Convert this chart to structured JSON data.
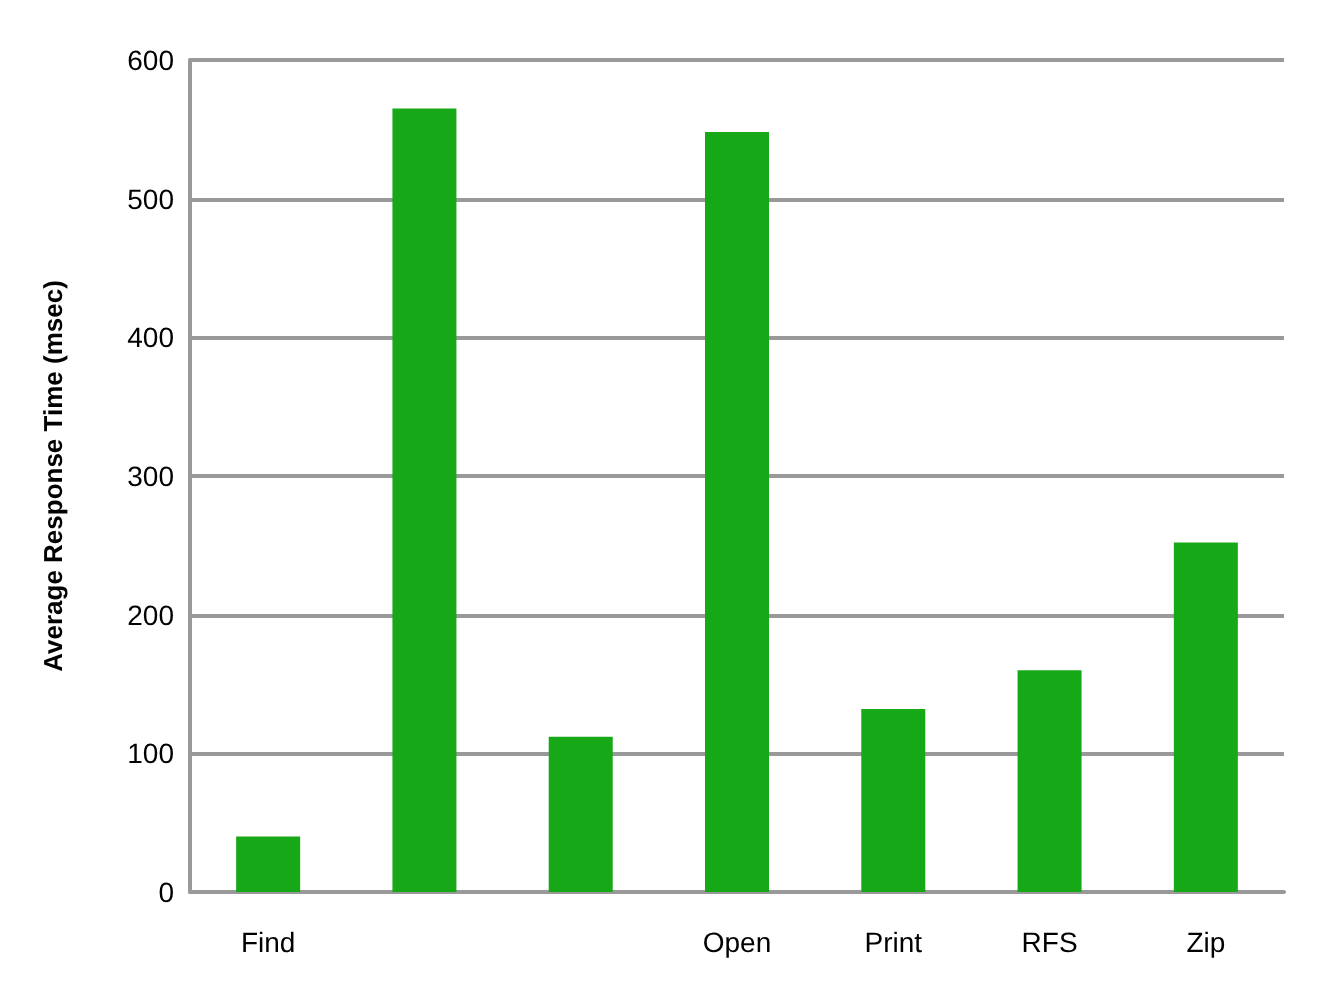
{
  "chart_data": {
    "type": "bar",
    "ylabel": "Average Response Time (msec)",
    "categories": [
      "Find",
      null,
      null,
      "Open",
      "Print",
      "RFS",
      "Zip"
    ],
    "values": [
      40,
      565,
      112,
      548,
      132,
      160,
      252
    ],
    "color": "#17a817",
    "ylim": [
      0,
      600
    ],
    "yticks": [
      0,
      100,
      200,
      300,
      400,
      500,
      600
    ],
    "grid": "y"
  }
}
